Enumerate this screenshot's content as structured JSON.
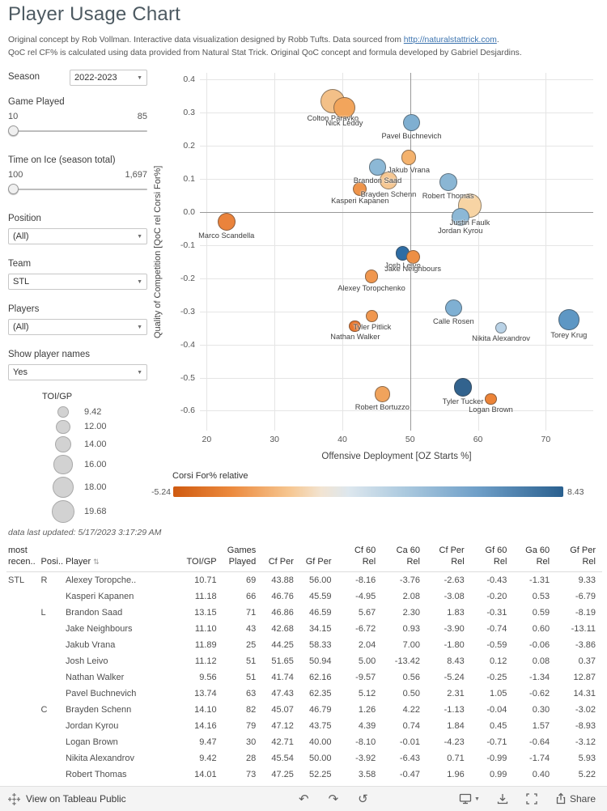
{
  "header": {
    "title": "Player Usage Chart",
    "credit_pre": "Original concept by Rob Vollman.  Interactive data visualization designed by Robb Tufts.  Data sourced from ",
    "credit_link": "http://naturalstattrick.com",
    "credit_post": ".",
    "qoc_note": "QoC rel CF% is calculated using data provided from Natural Stat Trick.  Original QoC concept and formula developed by Gabriel Desjardins."
  },
  "filters": {
    "season_label": "Season",
    "season_value": "2022-2023",
    "game_played_label": "Game Played",
    "game_played_min": "10",
    "game_played_max": "85",
    "toi_label": "Time on Ice (season total)",
    "toi_min": "100",
    "toi_max": "1,697",
    "position_label": "Position",
    "position_value": "(All)",
    "team_label": "Team",
    "team_value": "STL",
    "players_label": "Players",
    "players_value": "(All)",
    "show_names_label": "Show player names",
    "show_names_value": "Yes"
  },
  "size_legend": {
    "title": "TOI/GP",
    "items": [
      {
        "value": 9.42,
        "label": "9.42"
      },
      {
        "value": 12.0,
        "label": "12.00"
      },
      {
        "value": 14.0,
        "label": "14.00"
      },
      {
        "value": 16.0,
        "label": "16.00"
      },
      {
        "value": 18.0,
        "label": "18.00"
      },
      {
        "value": 19.68,
        "label": "19.68"
      }
    ]
  },
  "chart_data": {
    "type": "scatter",
    "xlabel": "Offensive Deployment [OZ Starts %]",
    "ylabel": "Quality of Competition [QoC rel Corsi For%]",
    "xlim": [
      19,
      77
    ],
    "ylim": [
      -0.66,
      0.42
    ],
    "x_ticks": [
      20,
      30,
      40,
      50,
      60,
      70
    ],
    "y_ticks": [
      0.4,
      0.3,
      0.2,
      0.1,
      0.0,
      -0.1,
      -0.2,
      -0.3,
      -0.4,
      -0.5,
      -0.6
    ],
    "x_ref_line": 50,
    "y_ref_line": 0,
    "size_field": "TOI/GP",
    "color_field": "Corsi For% relative",
    "points": [
      {
        "name": "Colton Parayko",
        "x": 38.6,
        "y": 0.335,
        "size": 19.7,
        "color": "#f3c088"
      },
      {
        "name": "Nick Leddy",
        "x": 40.3,
        "y": 0.315,
        "size": 17.3,
        "color": "#f2a55c"
      },
      {
        "name": "Pavel Buchnevich",
        "x": 50.2,
        "y": 0.27,
        "size": 13.74,
        "color": "#7fafd1"
      },
      {
        "name": "Jakub Vrana",
        "x": 49.8,
        "y": 0.165,
        "size": 11.89,
        "color": "#f4b26d"
      },
      {
        "name": "Brandon Saad",
        "x": 45.2,
        "y": 0.135,
        "size": 13.15,
        "color": "#8cb8d6"
      },
      {
        "name": "Brayden Schenn",
        "x": 46.8,
        "y": 0.095,
        "size": 14.1,
        "color": "#f6c792"
      },
      {
        "name": "Kasperi Kapanen",
        "x": 42.6,
        "y": 0.07,
        "size": 11.18,
        "color": "#ef944a"
      },
      {
        "name": "Robert Thomas",
        "x": 55.6,
        "y": 0.09,
        "size": 14.01,
        "color": "#8ab6d4"
      },
      {
        "name": "Justin Faulk",
        "x": 58.8,
        "y": 0.02,
        "size": 19.2,
        "color": "#f7d4a4"
      },
      {
        "name": "Jordan Kyrou",
        "x": 57.4,
        "y": -0.015,
        "size": 14.16,
        "color": "#8cb8d6"
      },
      {
        "name": "Marco Scandella",
        "x": 22.9,
        "y": -0.03,
        "size": 14.3,
        "color": "#ea833c"
      },
      {
        "name": "Josh Leivo",
        "x": 48.9,
        "y": -0.125,
        "size": 11.12,
        "color": "#2e6da4"
      },
      {
        "name": "Jake Neighbours",
        "x": 50.4,
        "y": -0.135,
        "size": 11.1,
        "color": "#ed8f44"
      },
      {
        "name": "Alexey Toropchenko",
        "x": 44.3,
        "y": -0.195,
        "size": 10.71,
        "color": "#f0974f"
      },
      {
        "name": "Calle Rosen",
        "x": 56.4,
        "y": -0.29,
        "size": 13.6,
        "color": "#7fb0d3"
      },
      {
        "name": "Nikita Alexandrov",
        "x": 63.4,
        "y": -0.35,
        "size": 9.42,
        "color": "#b9d2e6"
      },
      {
        "name": "Torey Krug",
        "x": 73.4,
        "y": -0.325,
        "size": 16.4,
        "color": "#5e97c4"
      },
      {
        "name": "Tyler Pitlick",
        "x": 44.4,
        "y": -0.315,
        "size": 9.6,
        "color": "#f0974f"
      },
      {
        "name": "Nathan Walker",
        "x": 41.9,
        "y": -0.345,
        "size": 9.56,
        "color": "#e8762d"
      },
      {
        "name": "Robert Bortuzzo",
        "x": 45.9,
        "y": -0.55,
        "size": 12.6,
        "color": "#f0a35c"
      },
      {
        "name": "Tyler Tucker",
        "x": 57.8,
        "y": -0.53,
        "size": 14.6,
        "color": "#32638e"
      },
      {
        "name": "Logan Brown",
        "x": 61.9,
        "y": -0.565,
        "size": 9.47,
        "color": "#ec8438"
      }
    ]
  },
  "color_legend": {
    "title": "Corsi For% relative",
    "min": "-5.24",
    "max": "8.43",
    "stops": [
      "#cf5a10 0%",
      "#ec8a3e 15%",
      "#f6c792 30%",
      "#f2e4d2 38%",
      "#dde7ee 45%",
      "#a9c8de 60%",
      "#6f9fc8 78%",
      "#2a608f 100%"
    ]
  },
  "updated_note": "data last updated:  5/17/2023 3:17:29 AM",
  "table": {
    "headers": [
      "most\nrecen..",
      "Posi..",
      "Player",
      "TOI/GP",
      "Games\nPlayed",
      "Cf Per",
      "Gf Per",
      "Cf 60\nRel",
      "Ca 60\nRel",
      "Cf Per\nRel",
      "Gf 60\nRel",
      "Ga 60\nRel",
      "Gf Per\nRel"
    ],
    "rows": [
      {
        "team": "STL",
        "pos": "R",
        "player": "Alexey Toropche..",
        "values": [
          "10.71",
          "69",
          "43.88",
          "56.00",
          "-8.16",
          "-3.76",
          "-2.63",
          "-0.43",
          "-1.31",
          "9.33"
        ]
      },
      {
        "team": "",
        "pos": "",
        "player": "Kasperi Kapanen",
        "values": [
          "11.18",
          "66",
          "46.76",
          "45.59",
          "-4.95",
          "2.08",
          "-3.08",
          "-0.20",
          "0.53",
          "-6.79"
        ]
      },
      {
        "team": "",
        "pos": "L",
        "player": "Brandon Saad",
        "values": [
          "13.15",
          "71",
          "46.86",
          "46.59",
          "5.67",
          "2.30",
          "1.83",
          "-0.31",
          "0.59",
          "-8.19"
        ]
      },
      {
        "team": "",
        "pos": "",
        "player": "Jake Neighbours",
        "values": [
          "11.10",
          "43",
          "42.68",
          "34.15",
          "-6.72",
          "0.93",
          "-3.90",
          "-0.74",
          "0.60",
          "-13.11"
        ]
      },
      {
        "team": "",
        "pos": "",
        "player": "Jakub Vrana",
        "values": [
          "11.89",
          "25",
          "44.25",
          "58.33",
          "2.04",
          "7.00",
          "-1.80",
          "-0.59",
          "-0.06",
          "-3.86"
        ]
      },
      {
        "team": "",
        "pos": "",
        "player": "Josh Leivo",
        "values": [
          "11.12",
          "51",
          "51.65",
          "50.94",
          "5.00",
          "-13.42",
          "8.43",
          "0.12",
          "0.08",
          "0.37"
        ]
      },
      {
        "team": "",
        "pos": "",
        "player": "Nathan Walker",
        "values": [
          "9.56",
          "51",
          "41.74",
          "62.16",
          "-9.57",
          "0.56",
          "-5.24",
          "-0.25",
          "-1.34",
          "12.87"
        ]
      },
      {
        "team": "",
        "pos": "",
        "player": "Pavel Buchnevich",
        "values": [
          "13.74",
          "63",
          "47.43",
          "62.35",
          "5.12",
          "0.50",
          "2.31",
          "1.05",
          "-0.62",
          "14.31"
        ]
      },
      {
        "team": "",
        "pos": "C",
        "player": "Brayden Schenn",
        "values": [
          "14.10",
          "82",
          "45.07",
          "46.79",
          "1.26",
          "4.22",
          "-1.13",
          "-0.04",
          "0.30",
          "-3.02"
        ]
      },
      {
        "team": "",
        "pos": "",
        "player": "Jordan Kyrou",
        "values": [
          "14.16",
          "79",
          "47.12",
          "43.75",
          "4.39",
          "0.74",
          "1.84",
          "0.45",
          "1.57",
          "-8.93"
        ]
      },
      {
        "team": "",
        "pos": "",
        "player": "Logan Brown",
        "values": [
          "9.47",
          "30",
          "42.71",
          "40.00",
          "-8.10",
          "-0.01",
          "-4.23",
          "-0.71",
          "-0.64",
          "-3.12"
        ]
      },
      {
        "team": "",
        "pos": "",
        "player": "Nikita Alexandrov",
        "values": [
          "9.42",
          "28",
          "45.54",
          "50.00",
          "-3.92",
          "-6.43",
          "0.71",
          "-0.99",
          "-1.74",
          "5.93"
        ]
      },
      {
        "team": "",
        "pos": "",
        "player": "Robert Thomas",
        "values": [
          "14.01",
          "73",
          "47.25",
          "52.25",
          "3.58",
          "-0.47",
          "1.96",
          "0.99",
          "0.40",
          "5.22"
        ]
      }
    ]
  },
  "toolbar": {
    "undo_icon": "↶",
    "redo_icon": "↷",
    "reset_icon": "↺",
    "view_label": "View on Tableau Public",
    "share_label": "Share"
  }
}
